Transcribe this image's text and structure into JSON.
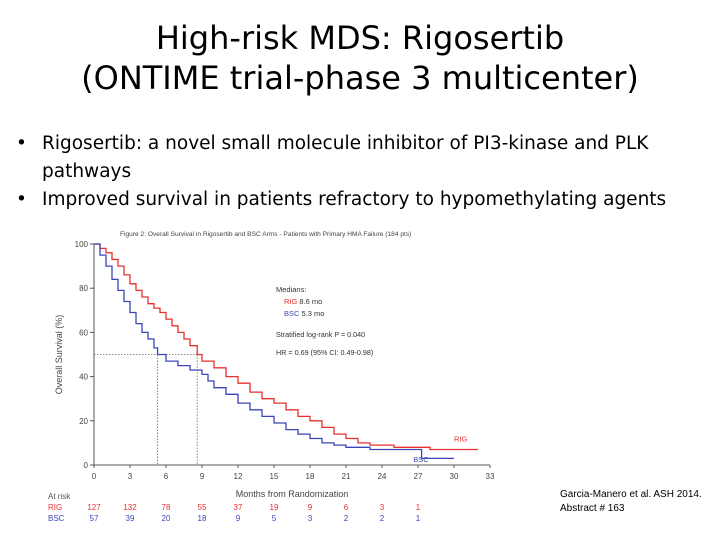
{
  "slide": {
    "title_line1": "High-risk MDS: Rigosertib",
    "title_line2": "(ONTIME trial-phase 3 multicenter)",
    "bullets": [
      "Rigosertib: a novel small molecule inhibitor of PI3-kinase and PLK pathways",
      "Improved survival in patients refractory to hypomethylating agents"
    ],
    "citation_line1": "Garcia-Manero et al. ASH 2014.",
    "citation_line2": "Abstract # 163"
  },
  "chart_data": {
    "type": "line",
    "title": "Figure 2: Overall Survival in Rigosertib and BSC Arms - Patients with Primary HMA Failure (184 pts)",
    "xlabel": "Months from Randomization",
    "ylabel": "Overall Survival (%)",
    "xlim": [
      0,
      33
    ],
    "ylim": [
      0,
      100
    ],
    "x_ticks": [
      "0",
      "3",
      "6",
      "9",
      "12",
      "15",
      "18",
      "21",
      "24",
      "27",
      "30",
      "33"
    ],
    "y_ticks": [
      "0",
      "20",
      "40",
      "60",
      "80",
      "100"
    ],
    "series": [
      {
        "name": "RIG",
        "color": "#e8312f",
        "points": [
          [
            0,
            100
          ],
          [
            0.5,
            98
          ],
          [
            1,
            96
          ],
          [
            1.5,
            93
          ],
          [
            2,
            90
          ],
          [
            2.5,
            86
          ],
          [
            3,
            82
          ],
          [
            3.5,
            79
          ],
          [
            4,
            76
          ],
          [
            4.5,
            73
          ],
          [
            5,
            71
          ],
          [
            5.5,
            69
          ],
          [
            6,
            66
          ],
          [
            6.5,
            63
          ],
          [
            7,
            60
          ],
          [
            7.5,
            57
          ],
          [
            8,
            54
          ],
          [
            8.6,
            50
          ],
          [
            9,
            47
          ],
          [
            10,
            44
          ],
          [
            11,
            40
          ],
          [
            12,
            37
          ],
          [
            13,
            33
          ],
          [
            14,
            30
          ],
          [
            15,
            28
          ],
          [
            16,
            25
          ],
          [
            17,
            22
          ],
          [
            18,
            20
          ],
          [
            19,
            17
          ],
          [
            20,
            14
          ],
          [
            21,
            12
          ],
          [
            22,
            10
          ],
          [
            23,
            9
          ],
          [
            24,
            9
          ],
          [
            25,
            8
          ],
          [
            26,
            8
          ],
          [
            27,
            8
          ],
          [
            28,
            7
          ],
          [
            29,
            7
          ],
          [
            30,
            7
          ],
          [
            31,
            7
          ],
          [
            32,
            7
          ]
        ]
      },
      {
        "name": "BSC",
        "color": "#3a45b8",
        "points": [
          [
            0,
            100
          ],
          [
            0.5,
            95
          ],
          [
            1,
            90
          ],
          [
            1.5,
            84
          ],
          [
            2,
            79
          ],
          [
            2.5,
            74
          ],
          [
            3,
            69
          ],
          [
            3.5,
            64
          ],
          [
            4,
            60
          ],
          [
            4.5,
            57
          ],
          [
            5,
            53
          ],
          [
            5.3,
            50
          ],
          [
            6,
            47
          ],
          [
            7,
            45
          ],
          [
            8,
            43
          ],
          [
            9,
            41
          ],
          [
            9.5,
            38
          ],
          [
            10,
            35
          ],
          [
            11,
            32
          ],
          [
            12,
            28
          ],
          [
            13,
            25
          ],
          [
            14,
            22
          ],
          [
            15,
            19
          ],
          [
            16,
            16
          ],
          [
            17,
            14
          ],
          [
            18,
            12
          ],
          [
            19,
            10
          ],
          [
            20,
            9
          ],
          [
            21,
            8
          ],
          [
            22,
            8
          ],
          [
            23,
            7
          ],
          [
            24,
            7
          ],
          [
            25,
            7
          ],
          [
            27,
            7
          ],
          [
            27.3,
            3
          ],
          [
            29,
            3
          ],
          [
            30,
            3
          ]
        ]
      }
    ],
    "annotations": {
      "medians_label": "Medians:",
      "rig_median_prefix": "RIG",
      "rig_median_value": "8.6 mo",
      "bsc_median_prefix": "BSC",
      "bsc_median_value": "5.3 mo",
      "logrank": "Stratified log-rank P = 0.040",
      "hr": "HR = 0.69 (95% CI: 0.49-0.98)",
      "median_x_rig": 8.6,
      "median_x_bsc": 5.3,
      "median_y": 50
    },
    "end_labels": {
      "rig": "RIG",
      "bsc": "BSC"
    },
    "at_risk": {
      "label": "At risk",
      "rows": [
        {
          "name": "RIG",
          "color": "#e8312f",
          "values": [
            "127",
            "132",
            "78",
            "55",
            "37",
            "19",
            "9",
            "6",
            "3",
            "1"
          ]
        },
        {
          "name": "BSC",
          "color": "#3a45b8",
          "values": [
            "57",
            "39",
            "20",
            "18",
            "9",
            "5",
            "3",
            "2",
            "2",
            "1"
          ]
        }
      ]
    }
  }
}
